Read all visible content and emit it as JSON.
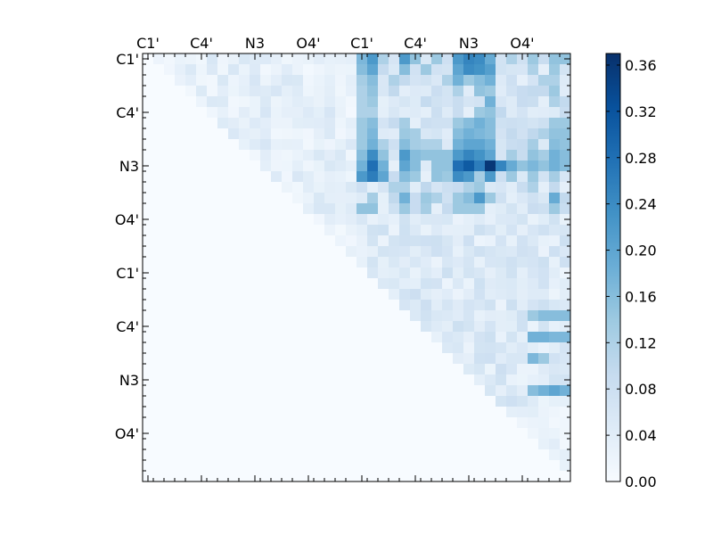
{
  "chart_data": {
    "type": "heatmap",
    "title": "",
    "xlabel": "",
    "ylabel": "",
    "x_tick_labels": [
      "C1'",
      "C4'",
      "N3",
      "O4'",
      "C1'",
      "C4'",
      "N3",
      "O4'"
    ],
    "y_tick_labels": [
      "C1'",
      "C4'",
      "N3",
      "O4'",
      "C1'",
      "C4'",
      "N3",
      "O4'"
    ],
    "x_tick_label_position": "top",
    "grid_size": 40,
    "major_tick_every": 5,
    "structure": "upper-triangular",
    "colormap": "Blues",
    "colormap_stops": [
      "#f7fbff",
      "#deebf7",
      "#c6dbef",
      "#9ecae1",
      "#6baed6",
      "#4292c6",
      "#2171b5",
      "#08519c",
      "#08306b"
    ],
    "color_range": [
      0.0,
      0.37
    ],
    "colorbar": {
      "position": "right",
      "ticks": [
        "0.00",
        "0.04",
        "0.08",
        "0.12",
        "0.16",
        "0.20",
        "0.24",
        "0.28",
        "0.32",
        "0.36"
      ]
    },
    "seed_cells": [
      [
        0,
        20,
        0.17
      ],
      [
        0,
        21,
        0.22
      ],
      [
        0,
        22,
        0.12
      ],
      [
        0,
        24,
        0.22
      ],
      [
        0,
        25,
        0.15
      ],
      [
        0,
        27,
        0.14
      ],
      [
        0,
        29,
        0.22
      ],
      [
        0,
        30,
        0.25
      ],
      [
        0,
        31,
        0.24
      ],
      [
        0,
        32,
        0.19
      ],
      [
        0,
        34,
        0.12
      ],
      [
        0,
        36,
        0.14
      ],
      [
        0,
        38,
        0.15
      ],
      [
        0,
        39,
        0.15
      ],
      [
        1,
        20,
        0.16
      ],
      [
        1,
        21,
        0.2
      ],
      [
        1,
        24,
        0.16
      ],
      [
        1,
        26,
        0.14
      ],
      [
        1,
        29,
        0.2
      ],
      [
        1,
        30,
        0.24
      ],
      [
        1,
        31,
        0.23
      ],
      [
        1,
        32,
        0.21
      ],
      [
        1,
        36,
        0.12
      ],
      [
        1,
        38,
        0.14
      ],
      [
        2,
        20,
        0.13
      ],
      [
        2,
        21,
        0.16
      ],
      [
        2,
        23,
        0.12
      ],
      [
        2,
        28,
        0.12
      ],
      [
        2,
        29,
        0.18
      ],
      [
        2,
        30,
        0.14
      ],
      [
        2,
        31,
        0.16
      ],
      [
        2,
        32,
        0.18
      ],
      [
        2,
        37,
        0.12
      ],
      [
        2,
        38,
        0.12
      ],
      [
        3,
        20,
        0.12
      ],
      [
        3,
        21,
        0.15
      ],
      [
        3,
        29,
        0.12
      ],
      [
        3,
        31,
        0.15
      ],
      [
        3,
        32,
        0.14
      ],
      [
        3,
        38,
        0.14
      ],
      [
        4,
        20,
        0.12
      ],
      [
        4,
        21,
        0.14
      ],
      [
        4,
        32,
        0.18
      ],
      [
        4,
        38,
        0.12
      ],
      [
        5,
        20,
        0.12
      ],
      [
        5,
        21,
        0.12
      ],
      [
        5,
        31,
        0.14
      ],
      [
        5,
        32,
        0.15
      ],
      [
        6,
        20,
        0.14
      ],
      [
        6,
        21,
        0.16
      ],
      [
        6,
        24,
        0.13
      ],
      [
        6,
        29,
        0.14
      ],
      [
        6,
        30,
        0.16
      ],
      [
        6,
        31,
        0.18
      ],
      [
        6,
        32,
        0.16
      ],
      [
        6,
        38,
        0.14
      ],
      [
        6,
        39,
        0.14
      ],
      [
        7,
        20,
        0.14
      ],
      [
        7,
        21,
        0.17
      ],
      [
        7,
        24,
        0.14
      ],
      [
        7,
        25,
        0.13
      ],
      [
        7,
        29,
        0.16
      ],
      [
        7,
        30,
        0.18
      ],
      [
        7,
        31,
        0.17
      ],
      [
        7,
        32,
        0.16
      ],
      [
        7,
        37,
        0.12
      ],
      [
        7,
        38,
        0.15
      ],
      [
        7,
        39,
        0.15
      ],
      [
        8,
        20,
        0.14
      ],
      [
        8,
        21,
        0.18
      ],
      [
        8,
        22,
        0.12
      ],
      [
        8,
        24,
        0.16
      ],
      [
        8,
        25,
        0.13
      ],
      [
        8,
        26,
        0.12
      ],
      [
        8,
        27,
        0.12
      ],
      [
        8,
        29,
        0.18
      ],
      [
        8,
        30,
        0.2
      ],
      [
        8,
        31,
        0.2
      ],
      [
        8,
        32,
        0.18
      ],
      [
        8,
        36,
        0.13
      ],
      [
        8,
        38,
        0.16
      ],
      [
        8,
        39,
        0.15
      ],
      [
        9,
        20,
        0.16
      ],
      [
        9,
        21,
        0.24
      ],
      [
        9,
        22,
        0.15
      ],
      [
        9,
        24,
        0.22
      ],
      [
        9,
        25,
        0.16
      ],
      [
        9,
        26,
        0.15
      ],
      [
        9,
        27,
        0.15
      ],
      [
        9,
        28,
        0.15
      ],
      [
        9,
        29,
        0.22
      ],
      [
        9,
        30,
        0.25
      ],
      [
        9,
        31,
        0.23
      ],
      [
        9,
        32,
        0.2
      ],
      [
        9,
        34,
        0.13
      ],
      [
        9,
        36,
        0.15
      ],
      [
        9,
        37,
        0.13
      ],
      [
        9,
        38,
        0.18
      ],
      [
        9,
        39,
        0.16
      ],
      [
        10,
        20,
        0.18
      ],
      [
        10,
        21,
        0.28
      ],
      [
        10,
        22,
        0.18
      ],
      [
        10,
        24,
        0.2
      ],
      [
        10,
        25,
        0.16
      ],
      [
        10,
        27,
        0.15
      ],
      [
        10,
        28,
        0.15
      ],
      [
        10,
        29,
        0.28
      ],
      [
        10,
        30,
        0.31
      ],
      [
        10,
        31,
        0.26
      ],
      [
        10,
        32,
        0.36
      ],
      [
        10,
        33,
        0.25
      ],
      [
        10,
        34,
        0.19
      ],
      [
        10,
        35,
        0.15
      ],
      [
        10,
        36,
        0.17
      ],
      [
        10,
        37,
        0.15
      ],
      [
        10,
        38,
        0.18
      ],
      [
        10,
        39,
        0.16
      ],
      [
        11,
        20,
        0.22
      ],
      [
        11,
        21,
        0.26
      ],
      [
        11,
        22,
        0.2
      ],
      [
        11,
        24,
        0.16
      ],
      [
        11,
        25,
        0.14
      ],
      [
        11,
        27,
        0.15
      ],
      [
        11,
        28,
        0.14
      ],
      [
        11,
        29,
        0.24
      ],
      [
        11,
        30,
        0.22
      ],
      [
        11,
        31,
        0.13
      ],
      [
        11,
        32,
        0.22
      ],
      [
        11,
        34,
        0.14
      ],
      [
        11,
        36,
        0.14
      ],
      [
        11,
        38,
        0.13
      ],
      [
        12,
        23,
        0.12
      ],
      [
        12,
        24,
        0.12
      ],
      [
        12,
        30,
        0.12
      ],
      [
        12,
        31,
        0.14
      ],
      [
        12,
        36,
        0.12
      ],
      [
        13,
        21,
        0.13
      ],
      [
        13,
        24,
        0.18
      ],
      [
        13,
        26,
        0.14
      ],
      [
        13,
        27,
        0.12
      ],
      [
        13,
        29,
        0.14
      ],
      [
        13,
        30,
        0.16
      ],
      [
        13,
        31,
        0.22
      ],
      [
        13,
        32,
        0.14
      ],
      [
        13,
        38,
        0.19
      ],
      [
        14,
        20,
        0.15
      ],
      [
        14,
        21,
        0.15
      ],
      [
        14,
        24,
        0.14
      ],
      [
        14,
        26,
        0.13
      ],
      [
        14,
        29,
        0.14
      ],
      [
        14,
        30,
        0.14
      ],
      [
        14,
        31,
        0.14
      ],
      [
        14,
        38,
        0.14
      ],
      [
        24,
        36,
        0.14
      ],
      [
        24,
        37,
        0.16
      ],
      [
        24,
        38,
        0.16
      ],
      [
        24,
        39,
        0.16
      ],
      [
        26,
        36,
        0.18
      ],
      [
        26,
        37,
        0.18
      ],
      [
        26,
        38,
        0.17
      ],
      [
        26,
        39,
        0.17
      ],
      [
        28,
        36,
        0.17
      ],
      [
        28,
        37,
        0.14
      ],
      [
        31,
        36,
        0.16
      ],
      [
        31,
        37,
        0.18
      ],
      [
        31,
        38,
        0.2
      ],
      [
        31,
        39,
        0.18
      ]
    ]
  }
}
